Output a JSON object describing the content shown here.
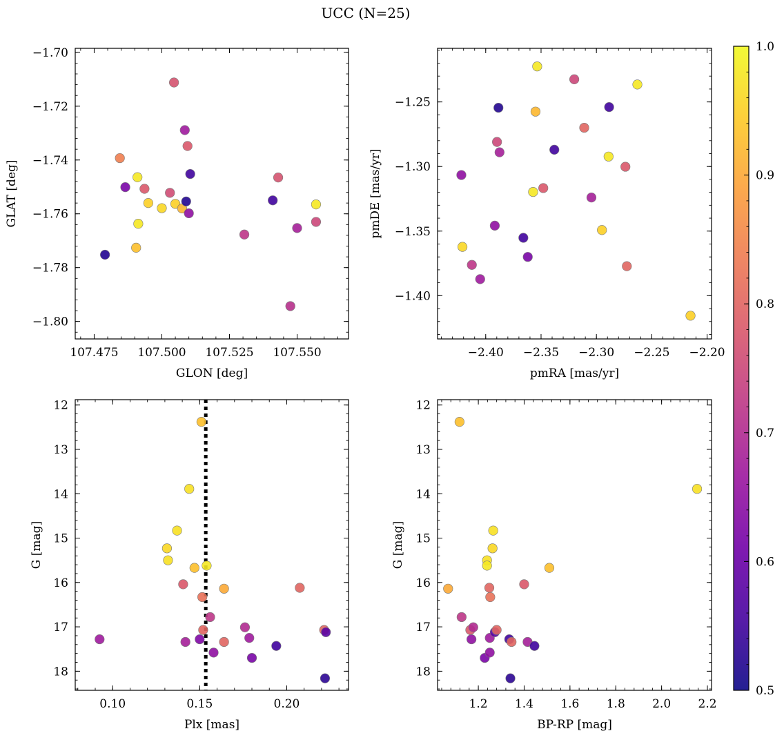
{
  "figure": {
    "title": "UCC (N=25)",
    "colormap_stops": [
      "#0d0887",
      "#46039f",
      "#7201a8",
      "#9c179e",
      "#bd3786",
      "#d8576b",
      "#ed7953",
      "#fb9f3a",
      "#fdca26",
      "#f0f921"
    ],
    "colorbar": {
      "min": 0.5,
      "max": 1.0,
      "ticks": [
        0.5,
        0.6,
        0.7,
        0.8,
        0.9,
        1.0
      ],
      "tick_labels": [
        "0.5",
        "0.6",
        "0.7",
        "0.8",
        "0.9",
        "1.0"
      ]
    }
  },
  "chart_data": [
    {
      "id": "glon-glat",
      "type": "scatter",
      "xlabel": "GLON [deg]",
      "ylabel": "GLAT [deg]",
      "xlim": [
        107.468,
        107.569
      ],
      "ylim": [
        -1.8065,
        -1.6985
      ],
      "x_ticks": [
        107.475,
        107.5,
        107.525,
        107.55
      ],
      "x_tick_labels": [
        "107.475",
        "107.500",
        "107.525",
        "107.550"
      ],
      "y_ticks": [
        -1.7,
        -1.72,
        -1.74,
        -1.76,
        -1.78,
        -1.8
      ],
      "y_tick_labels": [
        "−1.70",
        "−1.72",
        "−1.74",
        "−1.76",
        "−1.78",
        "−1.80"
      ],
      "points": [
        {
          "x": 107.479,
          "y": -1.7752,
          "c": 0.52
        },
        {
          "x": 107.4865,
          "y": -1.7501,
          "c": 0.62
        },
        {
          "x": 107.4845,
          "y": -1.7393,
          "c": 0.84
        },
        {
          "x": 107.491,
          "y": -1.7464,
          "c": 0.98
        },
        {
          "x": 107.4936,
          "y": -1.7507,
          "c": 0.78
        },
        {
          "x": 107.495,
          "y": -1.756,
          "c": 0.95
        },
        {
          "x": 107.4905,
          "y": -1.7726,
          "c": 0.93
        },
        {
          "x": 107.4913,
          "y": -1.7637,
          "c": 0.98
        },
        {
          "x": 107.5,
          "y": -1.7579,
          "c": 0.96
        },
        {
          "x": 107.503,
          "y": -1.7522,
          "c": 0.76
        },
        {
          "x": 107.505,
          "y": -1.7563,
          "c": 0.95
        },
        {
          "x": 107.5075,
          "y": -1.758,
          "c": 0.92
        },
        {
          "x": 107.5045,
          "y": -1.7112,
          "c": 0.77
        },
        {
          "x": 107.5085,
          "y": -1.7289,
          "c": 0.67
        },
        {
          "x": 107.5095,
          "y": -1.7348,
          "c": 0.78
        },
        {
          "x": 107.509,
          "y": -1.7554,
          "c": 0.52
        },
        {
          "x": 107.5105,
          "y": -1.7452,
          "c": 0.55
        },
        {
          "x": 107.51,
          "y": -1.7598,
          "c": 0.65
        },
        {
          "x": 107.5305,
          "y": -1.7677,
          "c": 0.72
        },
        {
          "x": 107.541,
          "y": -1.755,
          "c": 0.55
        },
        {
          "x": 107.543,
          "y": -1.7465,
          "c": 0.77
        },
        {
          "x": 107.5475,
          "y": -1.7943,
          "c": 0.71
        },
        {
          "x": 107.55,
          "y": -1.7653,
          "c": 0.68
        },
        {
          "x": 107.557,
          "y": -1.7565,
          "c": 0.98
        },
        {
          "x": 107.557,
          "y": -1.763,
          "c": 0.75
        }
      ]
    },
    {
      "id": "pmra-pmde",
      "type": "scatter",
      "xlabel": "pmRA [mas/yr]",
      "ylabel": "pmDE [mas/yr]",
      "xlim": [
        -2.4435,
        -2.196
      ],
      "ylim": [
        -1.4335,
        -1.2085
      ],
      "x_ticks": [
        -2.4,
        -2.35,
        -2.3,
        -2.25,
        -2.2
      ],
      "x_tick_labels": [
        "−2.40",
        "−2.35",
        "−2.30",
        "−2.25",
        "−2.20"
      ],
      "y_ticks": [
        -1.25,
        -1.3,
        -1.35,
        -1.4
      ],
      "y_tick_labels": [
        "−1.25",
        "−1.30",
        "−1.35",
        "−1.40"
      ],
      "points": [
        {
          "x": -2.422,
          "y": -1.3066,
          "c": 0.65
        },
        {
          "x": -2.421,
          "y": -1.3622,
          "c": 0.96
        },
        {
          "x": -2.4125,
          "y": -1.3762,
          "c": 0.72
        },
        {
          "x": -2.405,
          "y": -1.3872,
          "c": 0.67
        },
        {
          "x": -2.3918,
          "y": -1.3458,
          "c": 0.65
        },
        {
          "x": -2.3898,
          "y": -1.281,
          "c": 0.75
        },
        {
          "x": -2.3885,
          "y": -1.2545,
          "c": 0.52
        },
        {
          "x": -2.3875,
          "y": -1.289,
          "c": 0.68
        },
        {
          "x": -2.366,
          "y": -1.3552,
          "c": 0.55
        },
        {
          "x": -2.362,
          "y": -1.37,
          "c": 0.62
        },
        {
          "x": -2.3572,
          "y": -1.3197,
          "c": 0.98
        },
        {
          "x": -2.355,
          "y": -1.2575,
          "c": 0.92
        },
        {
          "x": -2.3535,
          "y": -1.2225,
          "c": 0.98
        },
        {
          "x": -2.348,
          "y": -1.3167,
          "c": 0.78
        },
        {
          "x": -2.338,
          "y": -1.287,
          "c": 0.55
        },
        {
          "x": -2.32,
          "y": -1.2325,
          "c": 0.75
        },
        {
          "x": -2.311,
          "y": -1.27,
          "c": 0.8
        },
        {
          "x": -2.3045,
          "y": -1.324,
          "c": 0.68
        },
        {
          "x": -2.295,
          "y": -1.3492,
          "c": 0.95
        },
        {
          "x": -2.289,
          "y": -1.2923,
          "c": 0.98
        },
        {
          "x": -2.2885,
          "y": -1.254,
          "c": 0.55
        },
        {
          "x": -2.2738,
          "y": -1.3002,
          "c": 0.78
        },
        {
          "x": -2.2725,
          "y": -1.3772,
          "c": 0.8
        },
        {
          "x": -2.263,
          "y": -1.2365,
          "c": 0.98
        },
        {
          "x": -2.215,
          "y": -1.4155,
          "c": 0.95
        }
      ]
    },
    {
      "id": "plx-g",
      "type": "scatter",
      "xlabel": "Plx [mas]",
      "ylabel": "G [mag]",
      "xlim": [
        0.0785,
        0.2355
      ],
      "ylim": [
        18.43,
        11.88
      ],
      "y_inverted": true,
      "x_ticks": [
        0.1,
        0.15,
        0.2
      ],
      "x_tick_labels": [
        "0.10",
        "0.15",
        "0.20"
      ],
      "y_ticks": [
        12,
        13,
        14,
        15,
        16,
        17,
        18
      ],
      "y_tick_labels": [
        "12",
        "13",
        "14",
        "15",
        "16",
        "17",
        "18"
      ],
      "vline": {
        "x": 0.1535,
        "style": "dotted",
        "color": "#000000"
      },
      "points": [
        {
          "x": 0.0925,
          "y": 17.28,
          "c": 0.67
        },
        {
          "x": 0.1312,
          "y": 15.23,
          "c": 0.96
        },
        {
          "x": 0.1318,
          "y": 15.5,
          "c": 0.97
        },
        {
          "x": 0.137,
          "y": 14.83,
          "c": 0.97
        },
        {
          "x": 0.1405,
          "y": 16.04,
          "c": 0.78
        },
        {
          "x": 0.1418,
          "y": 17.34,
          "c": 0.68
        },
        {
          "x": 0.144,
          "y": 13.89,
          "c": 0.97
        },
        {
          "x": 0.147,
          "y": 15.67,
          "c": 0.93
        },
        {
          "x": 0.15,
          "y": 17.28,
          "c": 0.63
        },
        {
          "x": 0.151,
          "y": 12.38,
          "c": 0.93
        },
        {
          "x": 0.1515,
          "y": 16.33,
          "c": 0.82
        },
        {
          "x": 0.152,
          "y": 17.07,
          "c": 0.8
        },
        {
          "x": 0.154,
          "y": 15.62,
          "c": 0.98
        },
        {
          "x": 0.156,
          "y": 16.78,
          "c": 0.72
        },
        {
          "x": 0.158,
          "y": 17.58,
          "c": 0.65
        },
        {
          "x": 0.164,
          "y": 16.14,
          "c": 0.9
        },
        {
          "x": 0.164,
          "y": 17.34,
          "c": 0.8
        },
        {
          "x": 0.176,
          "y": 17.01,
          "c": 0.7
        },
        {
          "x": 0.1785,
          "y": 17.25,
          "c": 0.67
        },
        {
          "x": 0.18,
          "y": 17.7,
          "c": 0.62
        },
        {
          "x": 0.194,
          "y": 17.43,
          "c": 0.55
        },
        {
          "x": 0.2075,
          "y": 16.12,
          "c": 0.8
        },
        {
          "x": 0.2215,
          "y": 17.07,
          "c": 0.8
        },
        {
          "x": 0.2225,
          "y": 17.12,
          "c": 0.58
        },
        {
          "x": 0.222,
          "y": 18.16,
          "c": 0.53
        }
      ]
    },
    {
      "id": "bprp-g",
      "type": "scatter",
      "xlabel": "BP-RP [mag]",
      "ylabel": "G [mag]",
      "xlim": [
        1.022,
        2.218
      ],
      "ylim": [
        18.43,
        11.88
      ],
      "y_inverted": true,
      "x_ticks": [
        1.2,
        1.4,
        1.6,
        1.8,
        2.0,
        2.2
      ],
      "x_tick_labels": [
        "1.2",
        "1.4",
        "1.6",
        "1.8",
        "2.0",
        "2.2"
      ],
      "y_ticks": [
        12,
        13,
        14,
        15,
        16,
        17,
        18
      ],
      "y_tick_labels": [
        "12",
        "13",
        "14",
        "15",
        "16",
        "17",
        "18"
      ],
      "points": [
        {
          "x": 1.068,
          "y": 16.14,
          "c": 0.9
        },
        {
          "x": 1.118,
          "y": 12.38,
          "c": 0.93
        },
        {
          "x": 1.127,
          "y": 16.78,
          "c": 0.72
        },
        {
          "x": 1.165,
          "y": 17.07,
          "c": 0.78
        },
        {
          "x": 1.17,
          "y": 17.28,
          "c": 0.65
        },
        {
          "x": 1.178,
          "y": 17.01,
          "c": 0.7
        },
        {
          "x": 1.228,
          "y": 17.7,
          "c": 0.62
        },
        {
          "x": 1.238,
          "y": 15.5,
          "c": 0.97
        },
        {
          "x": 1.238,
          "y": 15.62,
          "c": 0.98
        },
        {
          "x": 1.248,
          "y": 16.12,
          "c": 0.8
        },
        {
          "x": 1.25,
          "y": 17.25,
          "c": 0.67
        },
        {
          "x": 1.25,
          "y": 17.58,
          "c": 0.65
        },
        {
          "x": 1.252,
          "y": 16.33,
          "c": 0.82
        },
        {
          "x": 1.262,
          "y": 15.23,
          "c": 0.96
        },
        {
          "x": 1.265,
          "y": 14.83,
          "c": 0.97
        },
        {
          "x": 1.272,
          "y": 17.12,
          "c": 0.58
        },
        {
          "x": 1.28,
          "y": 17.07,
          "c": 0.8
        },
        {
          "x": 1.335,
          "y": 17.28,
          "c": 0.55
        },
        {
          "x": 1.34,
          "y": 18.16,
          "c": 0.53
        },
        {
          "x": 1.345,
          "y": 17.34,
          "c": 0.8
        },
        {
          "x": 1.4,
          "y": 16.04,
          "c": 0.78
        },
        {
          "x": 1.415,
          "y": 17.34,
          "c": 0.68
        },
        {
          "x": 1.445,
          "y": 17.43,
          "c": 0.55
        },
        {
          "x": 1.51,
          "y": 15.67,
          "c": 0.93
        },
        {
          "x": 2.155,
          "y": 13.89,
          "c": 0.97
        }
      ]
    }
  ]
}
